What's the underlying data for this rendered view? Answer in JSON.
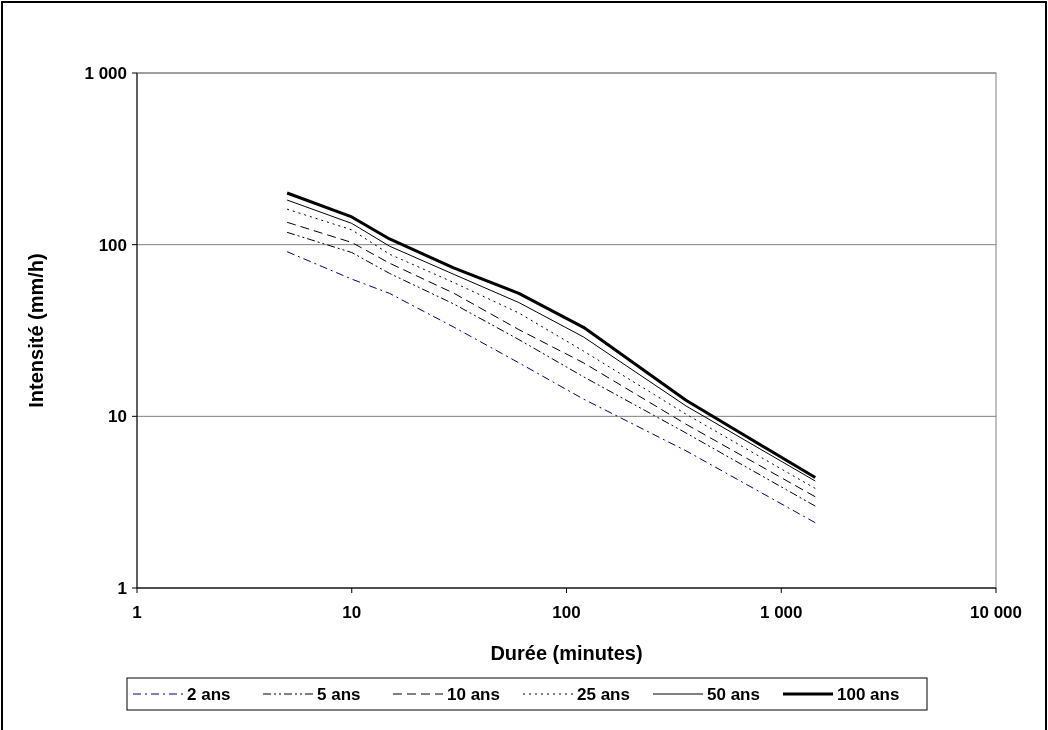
{
  "chart_data": {
    "type": "line",
    "xlabel": "Durée (minutes)",
    "ylabel": "Intensité (mm/h)",
    "log": "xy",
    "grid": "y",
    "legend": "bottom",
    "xlim": [
      1,
      10000
    ],
    "ylim": [
      1,
      1000
    ],
    "xticks": [
      1,
      10,
      100,
      {
        "value": 1000,
        "label": "1 000"
      },
      {
        "value": 10000,
        "label": "10 000"
      }
    ],
    "yticks": [
      1,
      10,
      100,
      {
        "value": 1000,
        "label": "1 000"
      }
    ],
    "x": [
      5,
      10,
      15,
      30,
      60,
      120,
      360,
      1440
    ],
    "series": [
      {
        "name": "2 ans",
        "color": "#000080",
        "line_style": "dashdot",
        "values": [
          91,
          63,
          52,
          33,
          20.5,
          12.6,
          6.3,
          2.4
        ]
      },
      {
        "name": "5 ans",
        "color": "#000000",
        "line_style": "dashdotdot",
        "values": [
          118,
          90,
          68,
          45,
          28,
          17,
          8,
          3.0
        ]
      },
      {
        "name": "10 ans",
        "color": "#000000",
        "line_style": "dashed",
        "values": [
          135,
          103,
          78,
          52,
          32,
          20.5,
          9,
          3.4
        ]
      },
      {
        "name": "25 ans",
        "color": "#000000",
        "line_style": "dotted",
        "values": [
          161,
          122,
          88,
          60,
          40,
          24,
          10.3,
          3.8
        ]
      },
      {
        "name": "50 ans",
        "color": "#000000",
        "line_style": "solid",
        "values": [
          182,
          133,
          98,
          67,
          46,
          29,
          11.5,
          4.2
        ]
      },
      {
        "name": "100 ans",
        "color": "#000000",
        "line_style": "solid",
        "values": [
          200,
          145,
          108,
          73,
          52,
          33,
          12.4,
          4.4
        ]
      }
    ]
  }
}
